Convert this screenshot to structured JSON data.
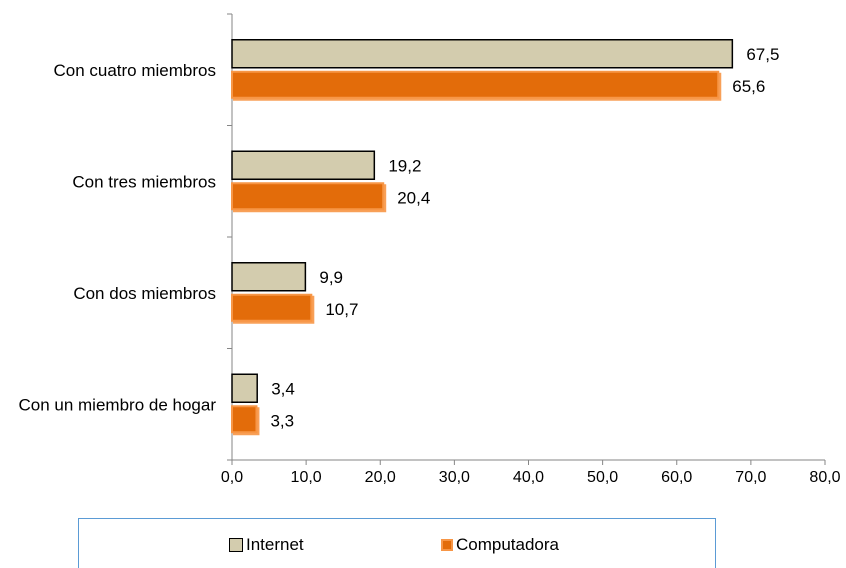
{
  "chart_data": {
    "type": "bar",
    "orientation": "horizontal",
    "categories": [
      "Con cuatro miembros",
      "Con tres miembros",
      "Con dos miembros",
      "Con un miembro de hogar"
    ],
    "series": [
      {
        "name": "Internet",
        "values": [
          67.5,
          19.2,
          9.9,
          3.4
        ],
        "labels": [
          "67,5",
          "19,2",
          "9,9",
          "3,4"
        ],
        "color": "#d3ccae",
        "border": "#000000"
      },
      {
        "name": "Computadora",
        "values": [
          65.6,
          20.4,
          10.7,
          3.3
        ],
        "labels": [
          "65,6",
          "20,4",
          "10,7",
          "3,3"
        ],
        "color": "#e36c0a",
        "border": "#f79646"
      }
    ],
    "xlim": [
      0,
      80
    ],
    "xticks": [
      0,
      10,
      20,
      30,
      40,
      50,
      60,
      70,
      80
    ],
    "xtick_labels": [
      "0,0",
      "10,0",
      "20,0",
      "30,0",
      "40,0",
      "50,0",
      "60,0",
      "70,0",
      "80,0"
    ],
    "grid": false,
    "legend_position": "bottom"
  }
}
